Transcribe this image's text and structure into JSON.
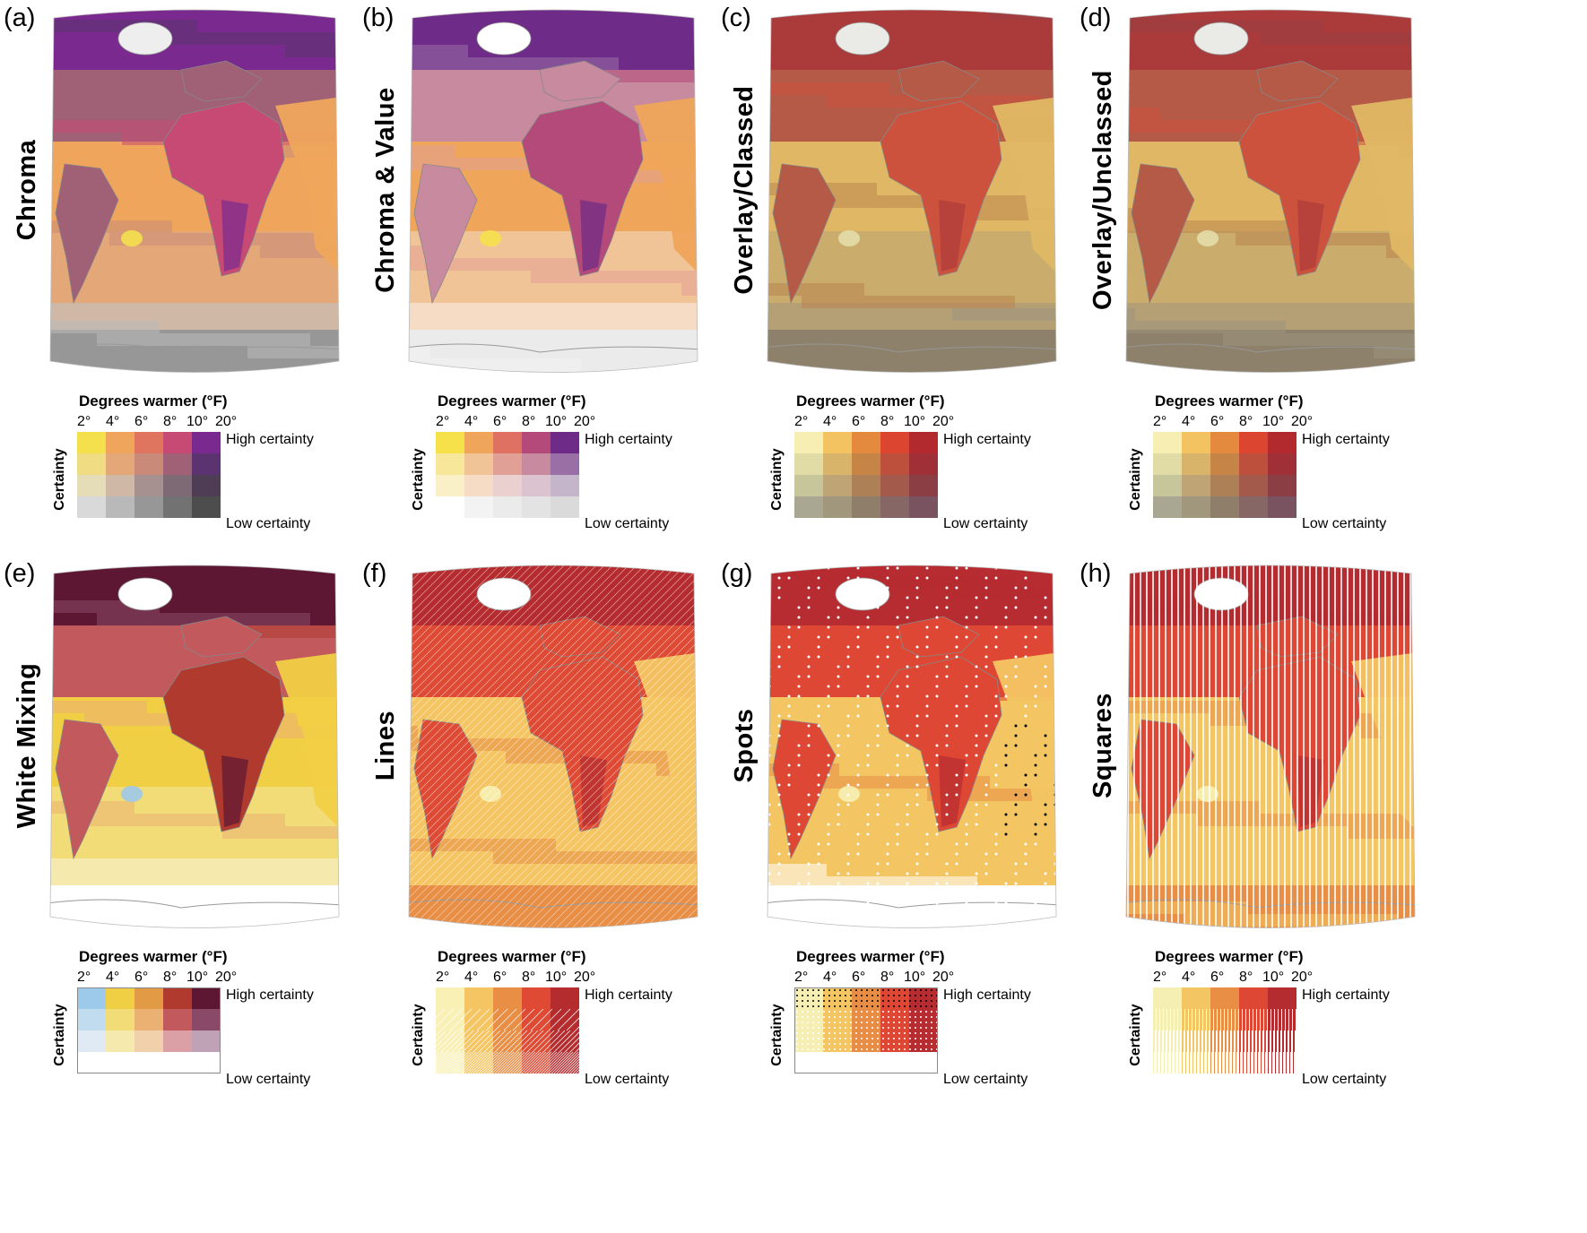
{
  "legend": {
    "title": "Degrees warmer (°F)",
    "ticks": [
      "2°",
      "4°",
      "6°",
      "8°",
      "10°",
      "20°"
    ],
    "high_certainty": "High certainty",
    "low_certainty": "Low certainty",
    "axis_label": "Certainty"
  },
  "panels": [
    {
      "label": "(a)",
      "title": "Chroma",
      "style": "chroma",
      "rows": [
        [
          "#f4e04d",
          "#efa65c",
          "#e0755f",
          "#c64a73",
          "#7a2a8f"
        ],
        [
          "#f0dc82",
          "#e4a878",
          "#c98a7a",
          "#a06075",
          "#5a3370"
        ],
        [
          "#e5dcb8",
          "#cfb8a6",
          "#a69090",
          "#7d6a75",
          "#4f3c55"
        ],
        [
          "#d9d9d9",
          "#b9b9b9",
          "#979797",
          "#727272",
          "#4d4d4d"
        ]
      ]
    },
    {
      "label": "(b)",
      "title": "Chroma & Value",
      "style": "chromavalue",
      "rows": [
        [
          "#f6e14a",
          "#efa55a",
          "#df7162",
          "#b34a7a",
          "#6e2b87"
        ],
        [
          "#f6e79a",
          "#f1c498",
          "#e1a096",
          "#c88a9e",
          "#9a6fa6"
        ],
        [
          "#f9f0c8",
          "#f6dcc4",
          "#ead0cf",
          "#dcc3d0",
          "#c4b5cb"
        ],
        [
          "#ffffff",
          "#f3f3f3",
          "#ebebeb",
          "#e3e3e3",
          "#dadada"
        ]
      ]
    },
    {
      "label": "(c)",
      "title": "Overlay/Classed",
      "style": "overlay",
      "rows": [
        [
          "#f7eeb4",
          "#f3c361",
          "#e48a3f",
          "#dc4631",
          "#b32a2e"
        ],
        [
          "#e1dba6",
          "#d8b46a",
          "#c78447",
          "#bd503c",
          "#9f3037"
        ],
        [
          "#c7c59a",
          "#bfa575",
          "#ad8155",
          "#a45a4a",
          "#8c3e45"
        ],
        [
          "#a9a792",
          "#a0977d",
          "#8f7f6a",
          "#866765",
          "#7a5360"
        ]
      ]
    },
    {
      "label": "(d)",
      "title": "Overlay/Unclassed",
      "style": "overlay-u",
      "rows": [
        [
          "#f7eeb4",
          "#f3c361",
          "#e48a3f",
          "#dc4631",
          "#b32a2e"
        ],
        [
          "#e1dba6",
          "#d8b46a",
          "#c78447",
          "#bd503c",
          "#9f3037"
        ],
        [
          "#c7c59a",
          "#bfa575",
          "#ad8155",
          "#a45a4a",
          "#8c3e45"
        ],
        [
          "#a9a792",
          "#a0977d",
          "#8f7f6a",
          "#866765",
          "#7a5360"
        ]
      ]
    },
    {
      "label": "(e)",
      "title": "White Mixing",
      "style": "white",
      "rows": [
        [
          "#9dc9ea",
          "#f1cf45",
          "#e39a45",
          "#b03a2e",
          "#5d1733"
        ],
        [
          "#c2dcef",
          "#f2dc78",
          "#ebb173",
          "#c2595d",
          "#8a4a67"
        ],
        [
          "#dfeaf5",
          "#f6e9ad",
          "#f1d0ac",
          "#dba0a5",
          "#c0a2b6"
        ],
        [
          "#ffffff",
          "#ffffff",
          "#ffffff",
          "#ffffff",
          "#ffffff"
        ]
      ]
    },
    {
      "label": "(f)",
      "title": "Lines",
      "style": "lines",
      "rows": [
        [
          "#f8f0b4",
          "#f4c562",
          "#e88e45",
          "#de4a33",
          "#b52c2f"
        ],
        [
          "#f8f0b4",
          "#f4c562",
          "#e88e45",
          "#de4a33",
          "#b52c2f"
        ],
        [
          "#f8f0b4",
          "#f4c562",
          "#e88e45",
          "#de4a33",
          "#b52c2f"
        ],
        [
          "#f8f0b4",
          "#f4c562",
          "#e88e45",
          "#de4a33",
          "#b52c2f"
        ]
      ]
    },
    {
      "label": "(g)",
      "title": "Spots",
      "style": "spots",
      "rows": [
        [
          "#f6efb4",
          "#f3c663",
          "#e78d45",
          "#de4733",
          "#b72c30"
        ],
        [
          "#f6efb4",
          "#f3c663",
          "#e78d45",
          "#de4733",
          "#b72c30"
        ],
        [
          "#f6efb4",
          "#f3c663",
          "#e78d45",
          "#de4733",
          "#b72c30"
        ],
        [
          "#ffffff",
          "#ffffff",
          "#ffffff",
          "#ffffff",
          "#ffffff"
        ]
      ]
    },
    {
      "label": "(h)",
      "title": "Squares",
      "style": "squares",
      "rows": [
        [
          "#f6efb4",
          "#f3c663",
          "#e88e45",
          "#de4733",
          "#b42c30"
        ],
        [
          "#f6efb4",
          "#f3c663",
          "#e88e45",
          "#de4733",
          "#b42c30"
        ],
        [
          "#f6efb4",
          "#f3c663",
          "#e88e45",
          "#de4733",
          "#b42c30"
        ],
        [
          "#f6efb4",
          "#f3c663",
          "#e88e45",
          "#de4733",
          "#b42c30"
        ]
      ]
    }
  ]
}
